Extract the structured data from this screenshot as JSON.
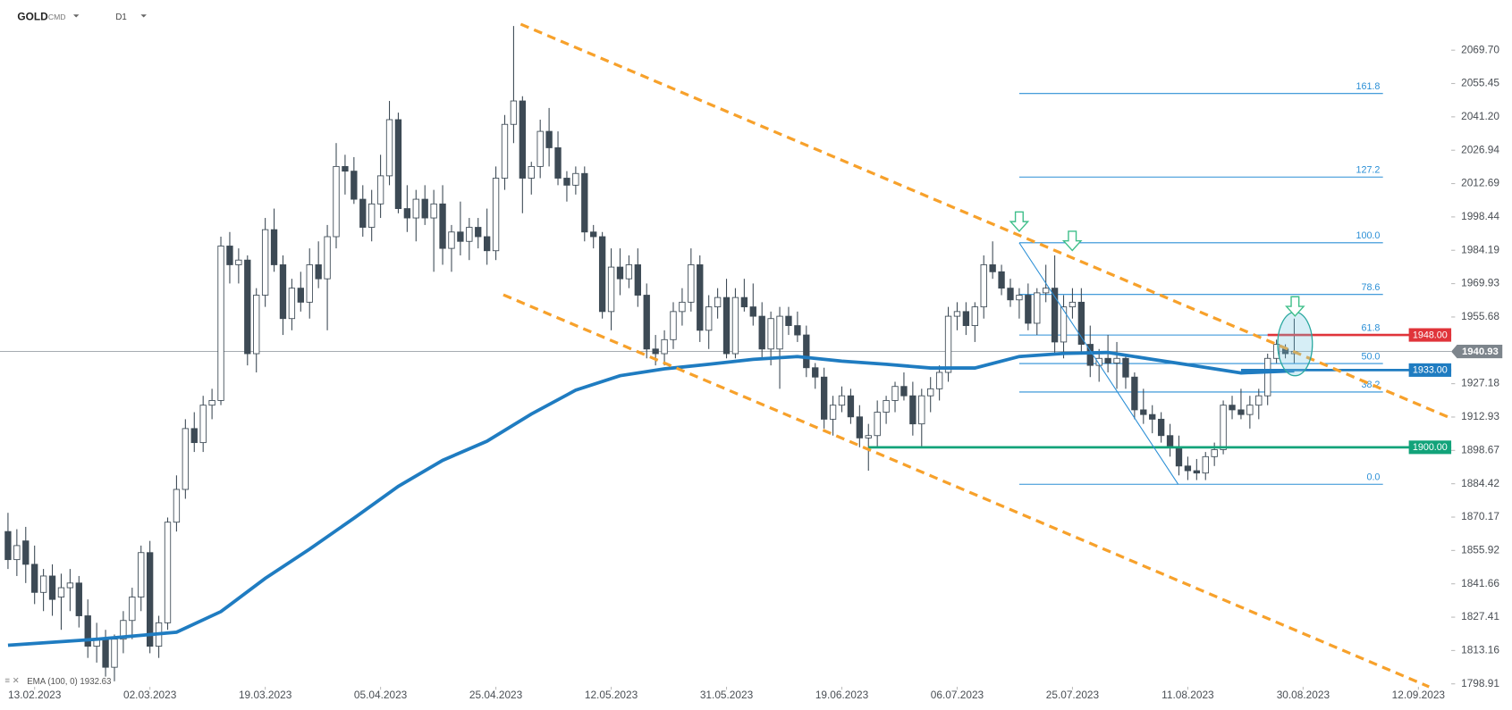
{
  "chart_data": {
    "type": "candlestick",
    "symbol": "GOLD",
    "market": "CMD",
    "interval": "D1",
    "indicator_label": "EMA (100, 0) 1932.63",
    "xlim": [
      -0.9,
      162.7
    ],
    "ylim": [
      1788.6,
      2091.1
    ],
    "xticks": [
      {
        "value": 3,
        "label": "13.02.2023"
      },
      {
        "value": 16,
        "label": "02.03.2023"
      },
      {
        "value": 29,
        "label": "19.03.2023"
      },
      {
        "value": 42,
        "label": "05.04.2023"
      },
      {
        "value": 55,
        "label": "25.04.2023"
      },
      {
        "value": 68,
        "label": "12.05.2023"
      },
      {
        "value": 81,
        "label": "31.05.2023"
      },
      {
        "value": 94,
        "label": "19.06.2023"
      },
      {
        "value": 107,
        "label": "06.07.2023"
      },
      {
        "value": 120,
        "label": "25.07.2023"
      },
      {
        "value": 133,
        "label": "11.08.2023"
      },
      {
        "value": 146,
        "label": "30.08.2023"
      },
      {
        "value": 159,
        "label": "12.09.2023"
      }
    ],
    "yticks": [
      {
        "value": 2069.7,
        "label": "2069.70"
      },
      {
        "value": 2055.45,
        "label": "2055.45"
      },
      {
        "value": 2041.2,
        "label": "2041.20"
      },
      {
        "value": 2026.94,
        "label": "2026.94"
      },
      {
        "value": 2012.69,
        "label": "2012.69"
      },
      {
        "value": 1998.44,
        "label": "1998.44"
      },
      {
        "value": 1984.19,
        "label": "1984.19"
      },
      {
        "value": 1969.93,
        "label": "1969.93"
      },
      {
        "value": 1955.68,
        "label": "1955.68"
      },
      {
        "value": 1927.18,
        "label": "1927.18"
      },
      {
        "value": 1912.93,
        "label": "1912.93"
      },
      {
        "value": 1898.67,
        "label": "1898.67"
      },
      {
        "value": 1884.42,
        "label": "1884.42"
      },
      {
        "value": 1870.17,
        "label": "1870.17"
      },
      {
        "value": 1855.92,
        "label": "1855.92"
      },
      {
        "value": 1841.66,
        "label": "1841.66"
      },
      {
        "value": 1827.41,
        "label": "1827.41"
      },
      {
        "value": 1813.16,
        "label": "1813.16"
      },
      {
        "value": 1798.91,
        "label": "1798.91"
      }
    ],
    "up_color": "#ffffff",
    "down_color": "#3d4a55",
    "wick_color": "#3d4a55",
    "candles": [
      {
        "open": 1864,
        "high": 1872,
        "low": 1848,
        "close": 1852
      },
      {
        "open": 1852,
        "high": 1865,
        "low": 1845,
        "close": 1858
      },
      {
        "open": 1860,
        "high": 1866,
        "low": 1842,
        "close": 1850
      },
      {
        "open": 1850,
        "high": 1858,
        "low": 1833,
        "close": 1838
      },
      {
        "open": 1838,
        "high": 1848,
        "low": 1830,
        "close": 1845
      },
      {
        "open": 1845,
        "high": 1850,
        "low": 1828,
        "close": 1835
      },
      {
        "open": 1836,
        "high": 1846,
        "low": 1822,
        "close": 1840
      },
      {
        "open": 1840,
        "high": 1848,
        "low": 1830,
        "close": 1842
      },
      {
        "open": 1842,
        "high": 1845,
        "low": 1823,
        "close": 1828
      },
      {
        "open": 1828,
        "high": 1835,
        "low": 1810,
        "close": 1815
      },
      {
        "open": 1815,
        "high": 1825,
        "low": 1808,
        "close": 1818
      },
      {
        "open": 1818,
        "high": 1822,
        "low": 1802,
        "close": 1806
      },
      {
        "open": 1806,
        "high": 1820,
        "low": 1800,
        "close": 1818
      },
      {
        "open": 1818,
        "high": 1830,
        "low": 1812,
        "close": 1826
      },
      {
        "open": 1826,
        "high": 1840,
        "low": 1818,
        "close": 1836
      },
      {
        "open": 1836,
        "high": 1858,
        "low": 1830,
        "close": 1855
      },
      {
        "open": 1855,
        "high": 1860,
        "low": 1812,
        "close": 1815
      },
      {
        "open": 1815,
        "high": 1828,
        "low": 1810,
        "close": 1825
      },
      {
        "open": 1825,
        "high": 1870,
        "low": 1822,
        "close": 1868
      },
      {
        "open": 1868,
        "high": 1888,
        "low": 1864,
        "close": 1882
      },
      {
        "open": 1882,
        "high": 1912,
        "low": 1878,
        "close": 1908
      },
      {
        "open": 1908,
        "high": 1915,
        "low": 1898,
        "close": 1902
      },
      {
        "open": 1902,
        "high": 1922,
        "low": 1898,
        "close": 1918
      },
      {
        "open": 1918,
        "high": 1925,
        "low": 1912,
        "close": 1920
      },
      {
        "open": 1920,
        "high": 1990,
        "low": 1918,
        "close": 1986
      },
      {
        "open": 1986,
        "high": 1992,
        "low": 1970,
        "close": 1978
      },
      {
        "open": 1978,
        "high": 1985,
        "low": 1970,
        "close": 1980
      },
      {
        "open": 1980,
        "high": 1982,
        "low": 1935,
        "close": 1940
      },
      {
        "open": 1940,
        "high": 1968,
        "low": 1932,
        "close": 1965
      },
      {
        "open": 1965,
        "high": 1998,
        "low": 1960,
        "close": 1993
      },
      {
        "open": 1993,
        "high": 2002,
        "low": 1975,
        "close": 1978
      },
      {
        "open": 1978,
        "high": 1982,
        "low": 1948,
        "close": 1955
      },
      {
        "open": 1955,
        "high": 1972,
        "low": 1950,
        "close": 1968
      },
      {
        "open": 1968,
        "high": 1975,
        "low": 1958,
        "close": 1962
      },
      {
        "open": 1962,
        "high": 1985,
        "low": 1955,
        "close": 1978
      },
      {
        "open": 1978,
        "high": 1988,
        "low": 1968,
        "close": 1972
      },
      {
        "open": 1972,
        "high": 1995,
        "low": 1950,
        "close": 1990
      },
      {
        "open": 1990,
        "high": 2030,
        "low": 1985,
        "close": 2020
      },
      {
        "open": 2020,
        "high": 2025,
        "low": 2008,
        "close": 2018
      },
      {
        "open": 2018,
        "high": 2024,
        "low": 2004,
        "close": 2006
      },
      {
        "open": 2006,
        "high": 2012,
        "low": 1990,
        "close": 1994
      },
      {
        "open": 1994,
        "high": 2010,
        "low": 1988,
        "close": 2004
      },
      {
        "open": 2004,
        "high": 2025,
        "low": 1998,
        "close": 2016
      },
      {
        "open": 2016,
        "high": 2048,
        "low": 2012,
        "close": 2040
      },
      {
        "open": 2040,
        "high": 2043,
        "low": 2000,
        "close": 2002
      },
      {
        "open": 2002,
        "high": 2012,
        "low": 1992,
        "close": 1998
      },
      {
        "open": 1998,
        "high": 2010,
        "low": 1988,
        "close": 2006
      },
      {
        "open": 2006,
        "high": 2012,
        "low": 1995,
        "close": 1998
      },
      {
        "open": 1998,
        "high": 2010,
        "low": 1975,
        "close": 2004
      },
      {
        "open": 2004,
        "high": 2012,
        "low": 1978,
        "close": 1985
      },
      {
        "open": 1985,
        "high": 1995,
        "low": 1975,
        "close": 1992
      },
      {
        "open": 1992,
        "high": 2005,
        "low": 1982,
        "close": 1988
      },
      {
        "open": 1988,
        "high": 1998,
        "low": 1980,
        "close": 1994
      },
      {
        "open": 1994,
        "high": 1998,
        "low": 1985,
        "close": 1990
      },
      {
        "open": 1990,
        "high": 2002,
        "low": 1978,
        "close": 1984
      },
      {
        "open": 1984,
        "high": 2020,
        "low": 1980,
        "close": 2015
      },
      {
        "open": 2015,
        "high": 2042,
        "low": 2010,
        "close": 2038
      },
      {
        "open": 2038,
        "high": 2080,
        "low": 2030,
        "close": 2048
      },
      {
        "open": 2048,
        "high": 2050,
        "low": 2000,
        "close": 2015
      },
      {
        "open": 2015,
        "high": 2022,
        "low": 2008,
        "close": 2020
      },
      {
        "open": 2020,
        "high": 2040,
        "low": 2015,
        "close": 2035
      },
      {
        "open": 2035,
        "high": 2045,
        "low": 2020,
        "close": 2028
      },
      {
        "open": 2028,
        "high": 2035,
        "low": 2012,
        "close": 2015
      },
      {
        "open": 2015,
        "high": 2018,
        "low": 2005,
        "close": 2012
      },
      {
        "open": 2012,
        "high": 2020,
        "low": 2008,
        "close": 2017
      },
      {
        "open": 2017,
        "high": 2020,
        "low": 1988,
        "close": 1992
      },
      {
        "open": 1992,
        "high": 1995,
        "low": 1985,
        "close": 1990
      },
      {
        "open": 1990,
        "high": 1992,
        "low": 1955,
        "close": 1958
      },
      {
        "open": 1958,
        "high": 1985,
        "low": 1950,
        "close": 1977
      },
      {
        "open": 1977,
        "high": 1985,
        "low": 1965,
        "close": 1972
      },
      {
        "open": 1972,
        "high": 1982,
        "low": 1968,
        "close": 1978
      },
      {
        "open": 1978,
        "high": 1985,
        "low": 1960,
        "close": 1965
      },
      {
        "open": 1965,
        "high": 1970,
        "low": 1938,
        "close": 1942
      },
      {
        "open": 1942,
        "high": 1948,
        "low": 1935,
        "close": 1940
      },
      {
        "open": 1940,
        "high": 1950,
        "low": 1935,
        "close": 1946
      },
      {
        "open": 1946,
        "high": 1962,
        "low": 1942,
        "close": 1958
      },
      {
        "open": 1958,
        "high": 1968,
        "low": 1952,
        "close": 1962
      },
      {
        "open": 1962,
        "high": 1985,
        "low": 1958,
        "close": 1978
      },
      {
        "open": 1978,
        "high": 1982,
        "low": 1945,
        "close": 1950
      },
      {
        "open": 1950,
        "high": 1965,
        "low": 1942,
        "close": 1960
      },
      {
        "open": 1960,
        "high": 1968,
        "low": 1955,
        "close": 1964
      },
      {
        "open": 1964,
        "high": 1972,
        "low": 1938,
        "close": 1940
      },
      {
        "open": 1940,
        "high": 1968,
        "low": 1938,
        "close": 1964
      },
      {
        "open": 1964,
        "high": 1972,
        "low": 1958,
        "close": 1960
      },
      {
        "open": 1960,
        "high": 1970,
        "low": 1952,
        "close": 1956
      },
      {
        "open": 1956,
        "high": 1962,
        "low": 1938,
        "close": 1942
      },
      {
        "open": 1942,
        "high": 1958,
        "low": 1935,
        "close": 1955
      },
      {
        "open": 1942,
        "high": 1960,
        "low": 1925,
        "close": 1956
      },
      {
        "open": 1956,
        "high": 1960,
        "low": 1948,
        "close": 1952
      },
      {
        "open": 1952,
        "high": 1958,
        "low": 1945,
        "close": 1948
      },
      {
        "open": 1948,
        "high": 1952,
        "low": 1930,
        "close": 1934
      },
      {
        "open": 1934,
        "high": 1936,
        "low": 1925,
        "close": 1930
      },
      {
        "open": 1930,
        "high": 1934,
        "low": 1908,
        "close": 1912
      },
      {
        "open": 1912,
        "high": 1922,
        "low": 1905,
        "close": 1918
      },
      {
        "open": 1918,
        "high": 1926,
        "low": 1915,
        "close": 1922
      },
      {
        "open": 1922,
        "high": 1925,
        "low": 1910,
        "close": 1913
      },
      {
        "open": 1913,
        "high": 1918,
        "low": 1900,
        "close": 1904
      },
      {
        "open": 1904,
        "high": 1910,
        "low": 1890,
        "close": 1905
      },
      {
        "open": 1905,
        "high": 1920,
        "low": 1900,
        "close": 1915
      },
      {
        "open": 1915,
        "high": 1922,
        "low": 1910,
        "close": 1920
      },
      {
        "open": 1920,
        "high": 1928,
        "low": 1915,
        "close": 1926
      },
      {
        "open": 1926,
        "high": 1932,
        "low": 1920,
        "close": 1922
      },
      {
        "open": 1922,
        "high": 1928,
        "low": 1905,
        "close": 1910
      },
      {
        "open": 1910,
        "high": 1925,
        "low": 1900,
        "close": 1922
      },
      {
        "open": 1922,
        "high": 1930,
        "low": 1915,
        "close": 1925
      },
      {
        "open": 1925,
        "high": 1935,
        "low": 1920,
        "close": 1932
      },
      {
        "open": 1932,
        "high": 1960,
        "low": 1928,
        "close": 1956
      },
      {
        "open": 1956,
        "high": 1962,
        "low": 1950,
        "close": 1958
      },
      {
        "open": 1958,
        "high": 1962,
        "low": 1948,
        "close": 1952
      },
      {
        "open": 1952,
        "high": 1962,
        "low": 1945,
        "close": 1960
      },
      {
        "open": 1960,
        "high": 1982,
        "low": 1955,
        "close": 1978
      },
      {
        "open": 1978,
        "high": 1988,
        "low": 1972,
        "close": 1975
      },
      {
        "open": 1975,
        "high": 1978,
        "low": 1965,
        "close": 1968
      },
      {
        "open": 1968,
        "high": 1972,
        "low": 1960,
        "close": 1963
      },
      {
        "open": 1963,
        "high": 1968,
        "low": 1955,
        "close": 1965
      },
      {
        "open": 1965,
        "high": 1970,
        "low": 1950,
        "close": 1953
      },
      {
        "open": 1953,
        "high": 1968,
        "low": 1948,
        "close": 1966
      },
      {
        "open": 1966,
        "high": 1978,
        "low": 1962,
        "close": 1968
      },
      {
        "open": 1968,
        "high": 1982,
        "low": 1940,
        "close": 1945
      },
      {
        "open": 1945,
        "high": 1965,
        "low": 1938,
        "close": 1960
      },
      {
        "open": 1960,
        "high": 1968,
        "low": 1955,
        "close": 1962
      },
      {
        "open": 1962,
        "high": 1968,
        "low": 1940,
        "close": 1944
      },
      {
        "open": 1944,
        "high": 1952,
        "low": 1930,
        "close": 1935
      },
      {
        "open": 1935,
        "high": 1942,
        "low": 1928,
        "close": 1938
      },
      {
        "open": 1938,
        "high": 1948,
        "low": 1932,
        "close": 1936
      },
      {
        "open": 1936,
        "high": 1945,
        "low": 1925,
        "close": 1938
      },
      {
        "open": 1938,
        "high": 1940,
        "low": 1925,
        "close": 1930
      },
      {
        "open": 1930,
        "high": 1932,
        "low": 1912,
        "close": 1916
      },
      {
        "open": 1916,
        "high": 1925,
        "low": 1910,
        "close": 1914
      },
      {
        "open": 1914,
        "high": 1918,
        "low": 1906,
        "close": 1912
      },
      {
        "open": 1912,
        "high": 1915,
        "low": 1902,
        "close": 1905
      },
      {
        "open": 1905,
        "high": 1910,
        "low": 1896,
        "close": 1900
      },
      {
        "open": 1900,
        "high": 1905,
        "low": 1888,
        "close": 1892
      },
      {
        "open": 1892,
        "high": 1896,
        "low": 1886,
        "close": 1890
      },
      {
        "open": 1890,
        "high": 1895,
        "low": 1886,
        "close": 1889
      },
      {
        "open": 1889,
        "high": 1898,
        "low": 1886,
        "close": 1896
      },
      {
        "open": 1896,
        "high": 1902,
        "low": 1892,
        "close": 1899
      },
      {
        "open": 1899,
        "high": 1920,
        "low": 1897,
        "close": 1918
      },
      {
        "open": 1918,
        "high": 1922,
        "low": 1912,
        "close": 1916
      },
      {
        "open": 1916,
        "high": 1925,
        "low": 1912,
        "close": 1914
      },
      {
        "open": 1914,
        "high": 1922,
        "low": 1908,
        "close": 1918
      },
      {
        "open": 1918,
        "high": 1925,
        "low": 1912,
        "close": 1922
      },
      {
        "open": 1922,
        "high": 1940,
        "low": 1918,
        "close": 1938
      },
      {
        "open": 1938,
        "high": 1946,
        "low": 1936,
        "close": 1944
      },
      {
        "open": 1942,
        "high": 1944,
        "low": 1938,
        "close": 1940
      },
      {
        "open": 1940,
        "high": 1955,
        "low": 1936,
        "close": 1941
      }
    ],
    "ema": {
      "color": "#1f7cc1",
      "x": [
        0,
        10,
        19,
        24,
        29,
        34,
        39,
        44,
        49,
        54,
        59,
        64,
        69,
        74,
        79,
        84,
        89,
        94,
        99,
        104,
        109,
        114,
        119,
        124,
        129,
        134,
        139,
        145
      ],
      "values": [
        1815.4,
        1818,
        1821,
        1829.8,
        1844,
        1856.5,
        1869.7,
        1883.3,
        1894.4,
        1902.6,
        1914.2,
        1924.4,
        1930.6,
        1933.5,
        1935.5,
        1937.6,
        1938.8,
        1936.8,
        1935.5,
        1933.9,
        1933.9,
        1938.8,
        1940.1,
        1940.5,
        1937.6,
        1934.7,
        1931.8,
        1932.7
      ]
    },
    "levels": [
      {
        "value": 1948,
        "label": "1948.00",
        "color": "#e0343a",
        "from": 142
      },
      {
        "value": 1933,
        "label": "1933.00",
        "color": "#1f7cc1",
        "from": 139
      },
      {
        "value": 1900,
        "label": "1900.00",
        "color": "#12a37a",
        "from": 97
      }
    ],
    "last_price": {
      "value": 1940.93,
      "label": "1940.93",
      "color": "#7d858c"
    },
    "fib": {
      "color": "#2b8fd6",
      "low": 1884.2,
      "high": 1987.4,
      "from": 114,
      "to": 155,
      "levels": [
        {
          "value": 0,
          "label": "0.0"
        },
        38.2,
        {
          "value": 50,
          "label": "50.0"
        },
        61.8,
        78.6,
        {
          "value": 100,
          "label": "100.0"
        },
        127.2,
        161.8
      ]
    }
  }
}
